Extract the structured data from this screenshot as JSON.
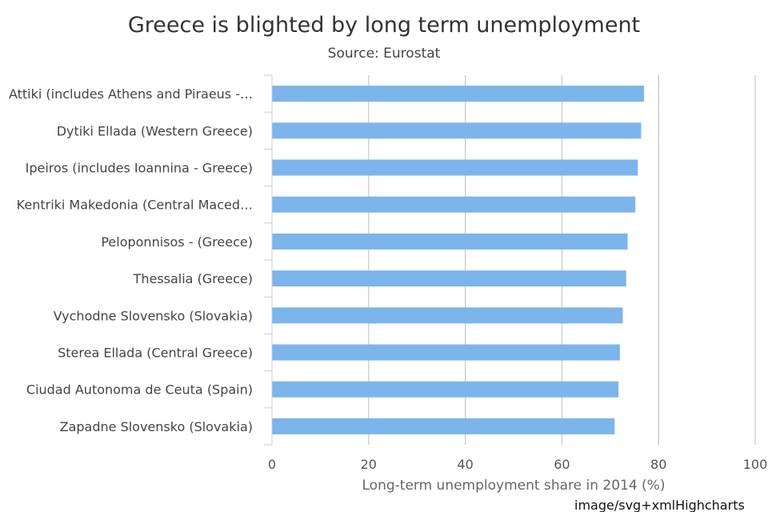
{
  "chart_data": {
    "type": "bar",
    "orientation": "horizontal",
    "title": "Greece is blighted by long term unemployment",
    "subtitle": "Source: Eurostat",
    "xlabel": "Long-term unemployment share in 2014 (%)",
    "xlim": [
      0,
      100
    ],
    "xticks": [
      0,
      20,
      40,
      60,
      80,
      100
    ],
    "xtick_labels": [
      "0",
      "20",
      "40",
      "60",
      "80",
      "100"
    ],
    "grid": true,
    "categories": [
      "Attiki (includes Athens and Piraeus -…",
      "Dytiki Ellada (Western Greece)",
      "Ipeiros (includes Ioannina - Greece)",
      "Kentriki Makedonia (Central Maced…",
      "Peloponnisos - (Greece)",
      "Thessalia (Greece)",
      "Vychodne Slovensko (Slovakia)",
      "Sterea Ellada (Central Greece)",
      "Ciudad Autonoma de Ceuta (Spain)",
      "Zapadne Slovensko (Slovakia)"
    ],
    "values": [
      77.0,
      76.4,
      75.7,
      75.2,
      73.6,
      73.3,
      72.6,
      72.0,
      71.7,
      70.9
    ],
    "bar_color": "#7cb5ec"
  },
  "credit": "image/svg+xmlHighcharts"
}
